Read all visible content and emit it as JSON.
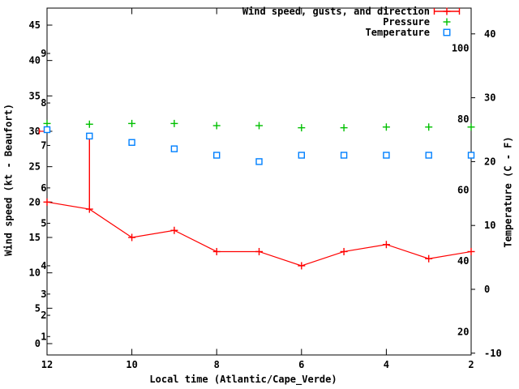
{
  "axes": {
    "x_label": "Local time (Atlantic/Cape_Verde)",
    "y_left_label": "Wind speed (kt - Beaufort)",
    "y_right_label": "Temperature (C - F)",
    "x_ticks": [
      12,
      10,
      8,
      6,
      4,
      2
    ],
    "kt_ticks": [
      0,
      5,
      10,
      15,
      20,
      25,
      30,
      35,
      40,
      45
    ],
    "beaufort_ticks": [
      {
        "b": 1,
        "kt": 1
      },
      {
        "b": 2,
        "kt": 4
      },
      {
        "b": 3,
        "kt": 7
      },
      {
        "b": 4,
        "kt": 11
      },
      {
        "b": 5,
        "kt": 17
      },
      {
        "b": 6,
        "kt": 22
      },
      {
        "b": 7,
        "kt": 28
      },
      {
        "b": 8,
        "kt": 34
      },
      {
        "b": 9,
        "kt": 41
      }
    ],
    "c_ticks": [
      40,
      30,
      20,
      10,
      0,
      -10
    ],
    "f_ticks": [
      100,
      80,
      60,
      40,
      20
    ]
  },
  "legend": {
    "entries": [
      {
        "label": "Wind speed, gusts, and direction",
        "color": "#ff0000",
        "marker": "errorbar-plus"
      },
      {
        "label": "Pressure",
        "color": "#00c000",
        "marker": "plus"
      },
      {
        "label": "Temperature",
        "color": "#0080ff",
        "marker": "open-square"
      }
    ]
  },
  "chart_data": {
    "type": "line",
    "title": "",
    "xlabel": "Local time (Atlantic/Cape_Verde)",
    "ylabel": "Wind speed (kt - Beaufort)",
    "y2label": "Temperature (C - F)",
    "x": [
      12,
      11,
      10,
      9,
      8,
      7,
      6,
      5,
      4,
      3,
      2
    ],
    "x_range": [
      12,
      2
    ],
    "y_left_range_kt": [
      -1.6,
      47.4
    ],
    "y_right_range_c": [
      -10.3,
      44.0
    ],
    "grid": false,
    "legend_position": "top-right",
    "background": "#ffffff",
    "series": [
      {
        "name": "Wind speed, gusts, and direction",
        "axis": "kt",
        "color": "#ff0000",
        "marker": "plus",
        "line": true,
        "values": [
          20,
          19,
          15,
          16,
          13,
          13,
          11,
          13,
          14,
          12,
          13
        ]
      },
      {
        "name": "Wind gusts",
        "axis": "kt",
        "color": "#ff0000",
        "marker": "errorbar-top",
        "line": false,
        "values": [
          30,
          29,
          null,
          null,
          null,
          null,
          null,
          null,
          null,
          null,
          null
        ]
      },
      {
        "name": "Pressure",
        "axis": "kt",
        "color": "#00c000",
        "marker": "plus",
        "line": false,
        "values": [
          31.1,
          31.0,
          31.1,
          31.1,
          30.8,
          30.8,
          30.5,
          30.5,
          30.6,
          30.6,
          30.6
        ]
      },
      {
        "name": "Temperature",
        "axis": "c",
        "color": "#0080ff",
        "marker": "open-square",
        "line": false,
        "values": [
          25,
          24,
          23,
          22,
          21,
          20,
          21,
          21,
          21,
          21,
          21
        ]
      }
    ]
  }
}
